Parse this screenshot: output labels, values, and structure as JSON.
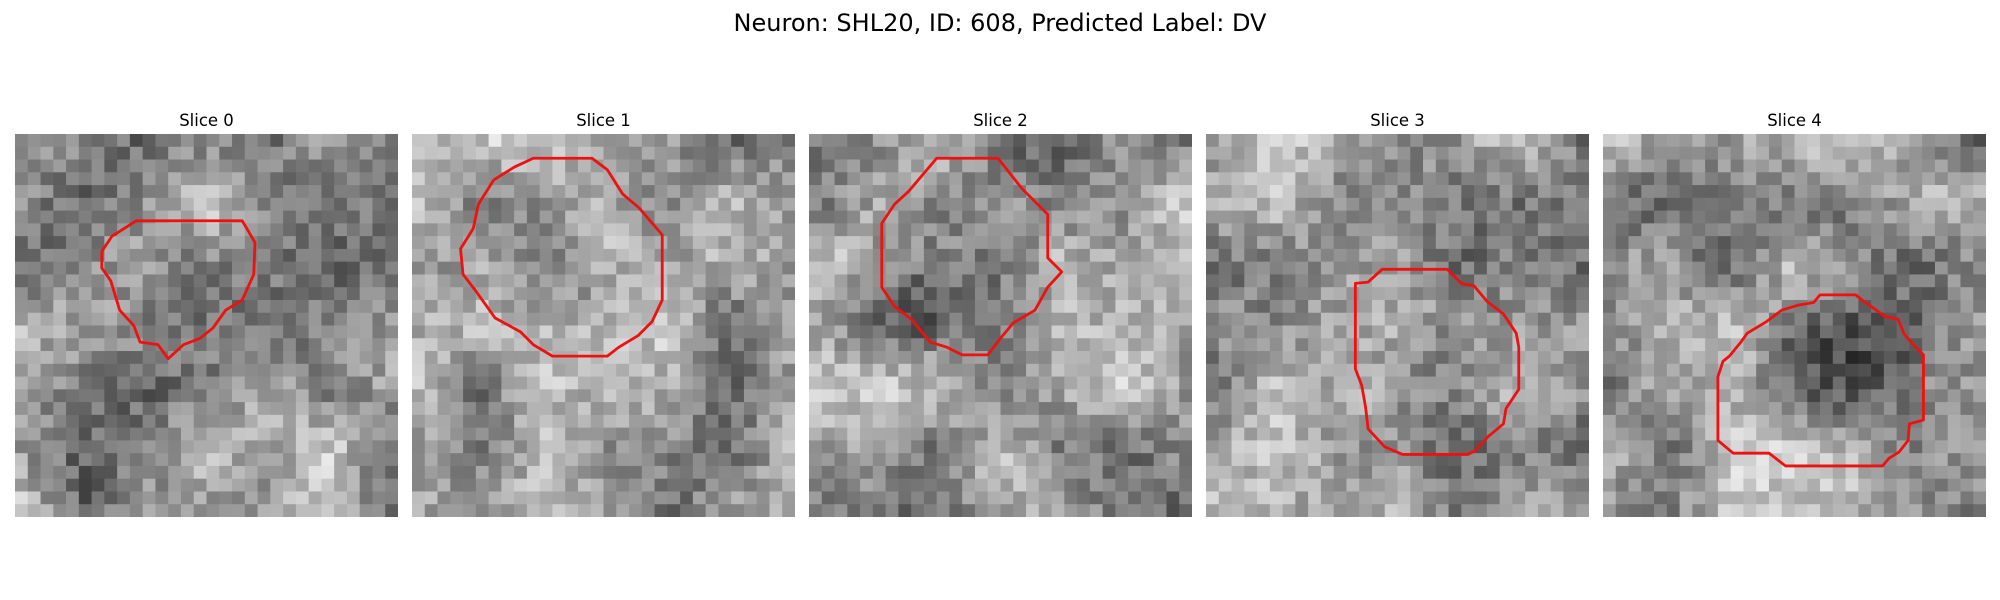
{
  "figure": {
    "title": "Neuron: SHL20, ID: 608, Predicted Label: DV"
  },
  "panels": [
    {
      "title": "Slice 0",
      "blob": {
        "cx": 12.5,
        "cy": 11.5,
        "r": 6.0,
        "darkness": 65
      },
      "contour": [
        [
          9.5,
          6.8
        ],
        [
          17.8,
          6.8
        ],
        [
          18.8,
          8.5
        ],
        [
          18.7,
          11.0
        ],
        [
          17.8,
          13.0
        ],
        [
          16.5,
          13.8
        ],
        [
          15.5,
          15.2
        ],
        [
          14.5,
          16.0
        ],
        [
          13.2,
          16.5
        ],
        [
          12.0,
          17.6
        ],
        [
          11.2,
          16.5
        ],
        [
          9.8,
          16.3
        ],
        [
          9.3,
          15.0
        ],
        [
          8.2,
          13.8
        ],
        [
          7.5,
          11.5
        ],
        [
          6.8,
          10.5
        ],
        [
          6.8,
          9.2
        ],
        [
          7.6,
          8.0
        ]
      ]
    },
    {
      "title": "Slice 1",
      "blob": {
        "cx": 12.0,
        "cy": 12.0,
        "r": 6.5,
        "darkness": 40
      },
      "contour": [
        [
          9.5,
          1.9
        ],
        [
          14.1,
          1.9
        ],
        [
          15.3,
          2.8
        ],
        [
          16.5,
          4.7
        ],
        [
          17.8,
          5.8
        ],
        [
          19.6,
          7.9
        ],
        [
          19.6,
          13.0
        ],
        [
          18.8,
          14.7
        ],
        [
          17.7,
          15.8
        ],
        [
          16.2,
          16.7
        ],
        [
          15.3,
          17.4
        ],
        [
          11.0,
          17.4
        ],
        [
          9.5,
          16.5
        ],
        [
          8.5,
          15.5
        ],
        [
          6.5,
          14.4
        ],
        [
          5.0,
          12.3
        ],
        [
          4.0,
          11.0
        ],
        [
          3.8,
          9.0
        ],
        [
          4.8,
          7.4
        ],
        [
          5.2,
          5.5
        ],
        [
          6.4,
          3.6
        ],
        [
          8.0,
          2.6
        ]
      ]
    },
    {
      "title": "Slice 2",
      "blob": {
        "cx": 9.0,
        "cy": 11.0,
        "r": 6.5,
        "darkness": 80
      },
      "contour": [
        [
          10.0,
          1.9
        ],
        [
          14.8,
          1.9
        ],
        [
          16.7,
          4.3
        ],
        [
          18.7,
          6.3
        ],
        [
          18.7,
          9.7
        ],
        [
          19.8,
          10.8
        ],
        [
          18.7,
          12.0
        ],
        [
          17.7,
          13.8
        ],
        [
          16.0,
          14.8
        ],
        [
          15.0,
          16.0
        ],
        [
          14.0,
          17.3
        ],
        [
          12.0,
          17.3
        ],
        [
          10.8,
          16.7
        ],
        [
          9.5,
          16.3
        ],
        [
          8.0,
          14.5
        ],
        [
          6.7,
          13.5
        ],
        [
          5.7,
          12.0
        ],
        [
          5.7,
          7.0
        ],
        [
          6.7,
          5.5
        ],
        [
          7.8,
          4.5
        ]
      ]
    },
    {
      "title": "Slice 3",
      "blob": {
        "cx": 17.5,
        "cy": 19.0,
        "r": 5.8,
        "darkness": 45
      },
      "contour": [
        [
          13.8,
          10.6
        ],
        [
          18.9,
          10.6
        ],
        [
          20.0,
          11.7
        ],
        [
          21.0,
          11.9
        ],
        [
          22.0,
          13.1
        ],
        [
          23.3,
          14.1
        ],
        [
          24.3,
          15.6
        ],
        [
          24.5,
          16.7
        ],
        [
          24.5,
          20.0
        ],
        [
          23.5,
          21.5
        ],
        [
          23.3,
          22.7
        ],
        [
          22.1,
          23.7
        ],
        [
          21.1,
          24.8
        ],
        [
          20.5,
          25.1
        ],
        [
          15.4,
          25.1
        ],
        [
          14.0,
          24.5
        ],
        [
          12.7,
          23.1
        ],
        [
          12.5,
          21.4
        ],
        [
          12.2,
          19.7
        ],
        [
          11.7,
          18.4
        ],
        [
          11.7,
          11.7
        ],
        [
          12.7,
          11.6
        ]
      ]
    },
    {
      "title": "Slice 4",
      "blob": {
        "cx": 20.0,
        "cy": 19.0,
        "r": 7.5,
        "darkness": 95
      },
      "contour": [
        [
          17.0,
          12.6
        ],
        [
          19.8,
          12.6
        ],
        [
          20.4,
          13.1
        ],
        [
          21.0,
          13.5
        ],
        [
          22.1,
          14.3
        ],
        [
          23.1,
          14.5
        ],
        [
          23.6,
          15.7
        ],
        [
          24.4,
          16.6
        ],
        [
          25.1,
          17.3
        ],
        [
          25.1,
          22.4
        ],
        [
          24.0,
          22.7
        ],
        [
          23.9,
          24.0
        ],
        [
          23.2,
          24.9
        ],
        [
          22.4,
          25.4
        ],
        [
          21.9,
          26.0
        ],
        [
          14.3,
          26.0
        ],
        [
          13.0,
          25.0
        ],
        [
          10.2,
          25.0
        ],
        [
          9.0,
          24.0
        ],
        [
          9.0,
          19.0
        ],
        [
          9.4,
          17.8
        ],
        [
          9.9,
          17.4
        ],
        [
          10.8,
          16.3
        ],
        [
          11.3,
          15.6
        ],
        [
          12.8,
          14.7
        ],
        [
          14.0,
          13.8
        ],
        [
          15.3,
          13.4
        ],
        [
          16.5,
          13.2
        ]
      ]
    }
  ],
  "colors": {
    "contour": "#ee1111",
    "background": "#ffffff",
    "title_text": "#000000"
  }
}
